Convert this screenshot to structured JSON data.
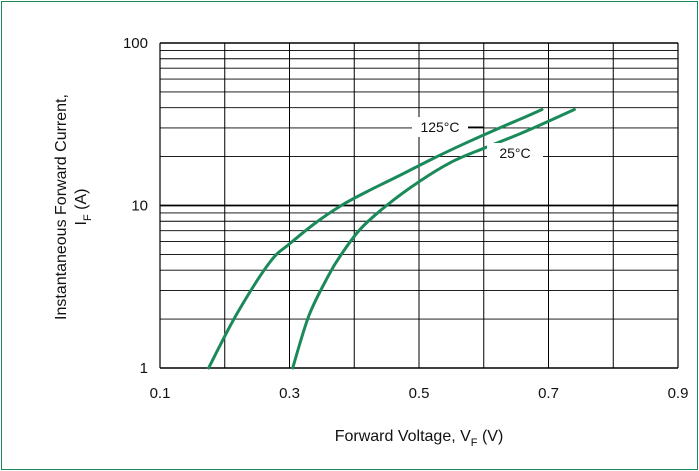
{
  "chart_data": {
    "type": "line",
    "xlabel": {
      "main": "Forward Voltage, V",
      "sub": "F",
      "unit": " (V)"
    },
    "ylabel": {
      "line1": "Instantaneous Forward Current,",
      "main": "I",
      "sub": "F",
      "unit": " (A)"
    },
    "xlim": [
      0.1,
      0.9
    ],
    "ylim": [
      1,
      100
    ],
    "yscale": "log",
    "grid": true,
    "x_ticks": [
      {
        "value": 0.1,
        "label": "0.1"
      },
      {
        "value": 0.3,
        "label": "0.3"
      },
      {
        "value": 0.5,
        "label": "0.5"
      },
      {
        "value": 0.7,
        "label": "0.7"
      },
      {
        "value": 0.9,
        "label": "0.9"
      }
    ],
    "y_ticks": [
      {
        "value": 1,
        "label": "1"
      },
      {
        "value": 10,
        "label": "10"
      },
      {
        "value": 100,
        "label": "100"
      }
    ],
    "series": [
      {
        "name": "125°C",
        "color": "#1a8a5a",
        "x": [
          0.175,
          0.22,
          0.27,
          0.3,
          0.34,
          0.38,
          0.42,
          0.47,
          0.52,
          0.57,
          0.62,
          0.66,
          0.69
        ],
        "y": [
          1,
          2.2,
          4.5,
          5.8,
          7.8,
          10,
          12.2,
          15.3,
          19.3,
          24,
          29.5,
          34.5,
          39
        ]
      },
      {
        "name": "25°C",
        "color": "#1a8a5a",
        "x": [
          0.305,
          0.33,
          0.36,
          0.38,
          0.41,
          0.45,
          0.5,
          0.55,
          0.6,
          0.65,
          0.7,
          0.74
        ],
        "y": [
          1,
          2.1,
          3.7,
          5.0,
          7.2,
          10,
          14,
          18.5,
          22.5,
          27,
          33,
          39
        ]
      }
    ]
  }
}
